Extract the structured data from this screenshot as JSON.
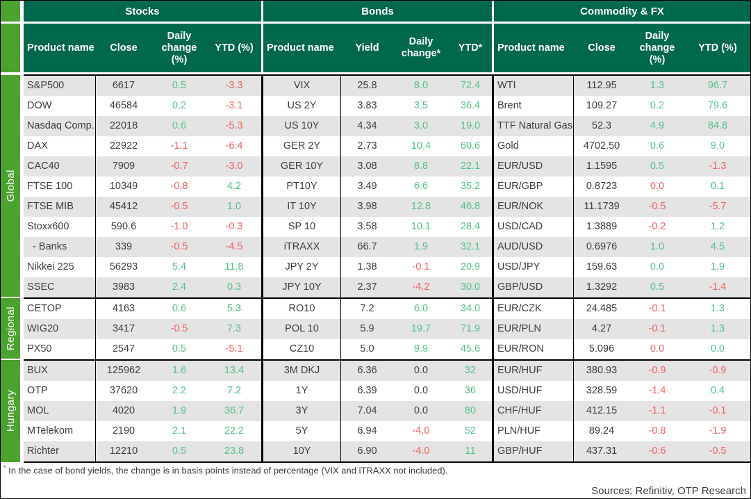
{
  "colors": {
    "header_green": "#00694b",
    "stripe_green": "#4ca22e",
    "row_gray": "#e4e4e4",
    "positive": "#55c189",
    "negative": "#f25f5f",
    "text": "#3e3e3d"
  },
  "header": {
    "groups": [
      {
        "title": "Stocks",
        "columns": [
          "Product name",
          "Close",
          "Daily change (%)",
          "YTD (%)"
        ]
      },
      {
        "title": "Bonds",
        "columns": [
          "Product name",
          "Yield",
          "Daily change*",
          "YTD*"
        ]
      },
      {
        "title": "Commodity & FX",
        "columns": [
          "Product name",
          "Close",
          "Daily change (%)",
          "YTD (%)"
        ]
      }
    ]
  },
  "groups": [
    {
      "label": "Global",
      "rows": [
        {
          "cells": [
            {
              "v": "S&P500"
            },
            {
              "v": "6617"
            },
            {
              "v": "0.5",
              "c": "pos"
            },
            {
              "v": "-3.3",
              "c": "neg"
            },
            {
              "v": "VIX"
            },
            {
              "v": "25.8"
            },
            {
              "v": "8.0",
              "c": "pos"
            },
            {
              "v": "72.4",
              "c": "pos"
            },
            {
              "v": "WTI"
            },
            {
              "v": "112.95"
            },
            {
              "v": "1.3",
              "c": "pos"
            },
            {
              "v": "96.7",
              "c": "pos"
            }
          ]
        },
        {
          "cells": [
            {
              "v": "DOW"
            },
            {
              "v": "46584"
            },
            {
              "v": "0.2",
              "c": "pos"
            },
            {
              "v": "-3.1",
              "c": "neg"
            },
            {
              "v": "US 2Y"
            },
            {
              "v": "3.83"
            },
            {
              "v": "3.5",
              "c": "pos"
            },
            {
              "v": "36.4",
              "c": "pos"
            },
            {
              "v": "Brent"
            },
            {
              "v": "109.27"
            },
            {
              "v": "0.2",
              "c": "pos"
            },
            {
              "v": "79.6",
              "c": "pos"
            }
          ]
        },
        {
          "cells": [
            {
              "v": "Nasdaq Comp."
            },
            {
              "v": "22018"
            },
            {
              "v": "0.6",
              "c": "pos"
            },
            {
              "v": "-5.3",
              "c": "neg"
            },
            {
              "v": "US 10Y"
            },
            {
              "v": "4.34"
            },
            {
              "v": "3.0",
              "c": "pos"
            },
            {
              "v": "19.0",
              "c": "pos"
            },
            {
              "v": "TTF Natural Gas"
            },
            {
              "v": "52.3"
            },
            {
              "v": "4.9",
              "c": "pos"
            },
            {
              "v": "84.8",
              "c": "pos"
            }
          ]
        },
        {
          "cells": [
            {
              "v": "DAX"
            },
            {
              "v": "22922"
            },
            {
              "v": "-1.1",
              "c": "neg"
            },
            {
              "v": "-6.4",
              "c": "neg"
            },
            {
              "v": "GER 2Y"
            },
            {
              "v": "2.73"
            },
            {
              "v": "10.4",
              "c": "pos"
            },
            {
              "v": "60.6",
              "c": "pos"
            },
            {
              "v": "Gold"
            },
            {
              "v": "4702.50"
            },
            {
              "v": "0.6",
              "c": "pos"
            },
            {
              "v": "9.0",
              "c": "pos"
            }
          ]
        },
        {
          "cells": [
            {
              "v": "CAC40"
            },
            {
              "v": "7909"
            },
            {
              "v": "-0.7",
              "c": "neg"
            },
            {
              "v": "-3.0",
              "c": "neg"
            },
            {
              "v": "GER 10Y"
            },
            {
              "v": "3.08"
            },
            {
              "v": "8.8",
              "c": "pos"
            },
            {
              "v": "22.1",
              "c": "pos"
            },
            {
              "v": "EUR/USD"
            },
            {
              "v": "1.1595"
            },
            {
              "v": "0.5",
              "c": "pos"
            },
            {
              "v": "-1.3",
              "c": "neg"
            }
          ]
        },
        {
          "cells": [
            {
              "v": "FTSE 100"
            },
            {
              "v": "10349"
            },
            {
              "v": "-0.8",
              "c": "neg"
            },
            {
              "v": "4.2",
              "c": "pos"
            },
            {
              "v": "PT10Y"
            },
            {
              "v": "3.49"
            },
            {
              "v": "6.6",
              "c": "pos"
            },
            {
              "v": "35.2",
              "c": "pos"
            },
            {
              "v": "EUR/GBP"
            },
            {
              "v": "0.8723"
            },
            {
              "v": "0.0",
              "c": "neg"
            },
            {
              "v": "0.1",
              "c": "pos"
            }
          ]
        },
        {
          "cells": [
            {
              "v": "FTSE MIB"
            },
            {
              "v": "45412"
            },
            {
              "v": "-0.5",
              "c": "neg"
            },
            {
              "v": "1.0",
              "c": "pos"
            },
            {
              "v": "IT 10Y"
            },
            {
              "v": "3.98"
            },
            {
              "v": "12.8",
              "c": "pos"
            },
            {
              "v": "46.8",
              "c": "pos"
            },
            {
              "v": "EUR/NOK"
            },
            {
              "v": "11.1739"
            },
            {
              "v": "-0.5",
              "c": "neg"
            },
            {
              "v": "-5.7",
              "c": "neg"
            }
          ]
        },
        {
          "cells": [
            {
              "v": "Stoxx600"
            },
            {
              "v": "590.6"
            },
            {
              "v": "-1.0",
              "c": "neg"
            },
            {
              "v": "-0.3",
              "c": "neg"
            },
            {
              "v": "SP 10"
            },
            {
              "v": "3.58"
            },
            {
              "v": "10.1",
              "c": "pos"
            },
            {
              "v": "28.4",
              "c": "pos"
            },
            {
              "v": "USD/CAD"
            },
            {
              "v": "1.3889"
            },
            {
              "v": "-0.2",
              "c": "neg"
            },
            {
              "v": "1.2",
              "c": "pos"
            }
          ]
        },
        {
          "cells": [
            {
              "v": "  - Banks"
            },
            {
              "v": "339"
            },
            {
              "v": "-0.5",
              "c": "neg"
            },
            {
              "v": "-4.5",
              "c": "neg"
            },
            {
              "v": "iTRAXX"
            },
            {
              "v": "66.7"
            },
            {
              "v": "1.9",
              "c": "pos"
            },
            {
              "v": "32.1",
              "c": "pos"
            },
            {
              "v": "AUD/USD"
            },
            {
              "v": "0.6976"
            },
            {
              "v": "1.0",
              "c": "pos"
            },
            {
              "v": "4.5",
              "c": "pos"
            }
          ]
        },
        {
          "cells": [
            {
              "v": "Nikkei 225"
            },
            {
              "v": "56293"
            },
            {
              "v": "5.4",
              "c": "pos"
            },
            {
              "v": "11.8",
              "c": "pos"
            },
            {
              "v": "JPY 2Y"
            },
            {
              "v": "1.38"
            },
            {
              "v": "-0.1",
              "c": "neg"
            },
            {
              "v": "20.9",
              "c": "pos"
            },
            {
              "v": "USD/JPY"
            },
            {
              "v": "159.63"
            },
            {
              "v": "0.0",
              "c": "pos"
            },
            {
              "v": "1.9",
              "c": "pos"
            }
          ]
        },
        {
          "cells": [
            {
              "v": "SSEC"
            },
            {
              "v": "3983"
            },
            {
              "v": "2.4",
              "c": "pos"
            },
            {
              "v": "0.3",
              "c": "pos"
            },
            {
              "v": "JPY 10Y"
            },
            {
              "v": "2.37"
            },
            {
              "v": "-4.2",
              "c": "neg"
            },
            {
              "v": "30.0",
              "c": "pos"
            },
            {
              "v": "GBP/USD"
            },
            {
              "v": "1.3292"
            },
            {
              "v": "0.5",
              "c": "pos"
            },
            {
              "v": "-1.4",
              "c": "neg"
            }
          ]
        }
      ]
    },
    {
      "label": "Regional",
      "rows": [
        {
          "cells": [
            {
              "v": "CETOP"
            },
            {
              "v": "4163"
            },
            {
              "v": "0.6",
              "c": "pos"
            },
            {
              "v": "5.3",
              "c": "pos"
            },
            {
              "v": "RO10"
            },
            {
              "v": "7.2"
            },
            {
              "v": "6.0",
              "c": "pos"
            },
            {
              "v": "34.0",
              "c": "pos"
            },
            {
              "v": "EUR/CZK"
            },
            {
              "v": "24.485"
            },
            {
              "v": "-0.1",
              "c": "neg"
            },
            {
              "v": "1.3",
              "c": "pos"
            }
          ]
        },
        {
          "cells": [
            {
              "v": "WIG20"
            },
            {
              "v": "3417"
            },
            {
              "v": "-0.5",
              "c": "neg"
            },
            {
              "v": "7.3",
              "c": "pos"
            },
            {
              "v": "POL 10"
            },
            {
              "v": "5.9"
            },
            {
              "v": "19.7",
              "c": "pos"
            },
            {
              "v": "71.9",
              "c": "pos"
            },
            {
              "v": "EUR/PLN"
            },
            {
              "v": "4.27"
            },
            {
              "v": "-0.1",
              "c": "neg"
            },
            {
              "v": "1.3",
              "c": "pos"
            }
          ]
        },
        {
          "cells": [
            {
              "v": "PX50"
            },
            {
              "v": "2547"
            },
            {
              "v": "0.5",
              "c": "pos"
            },
            {
              "v": "-5.1",
              "c": "neg"
            },
            {
              "v": "CZ10"
            },
            {
              "v": "5.0"
            },
            {
              "v": "9.9",
              "c": "pos"
            },
            {
              "v": "45.6",
              "c": "pos"
            },
            {
              "v": "EUR/RON"
            },
            {
              "v": "5.096"
            },
            {
              "v": "0.0",
              "c": "neg"
            },
            {
              "v": "0.0",
              "c": "pos"
            }
          ]
        }
      ]
    },
    {
      "label": "Hungary",
      "rows": [
        {
          "cells": [
            {
              "v": "BUX"
            },
            {
              "v": "125962"
            },
            {
              "v": "1.6",
              "c": "pos"
            },
            {
              "v": "13.4",
              "c": "pos"
            },
            {
              "v": "3M DKJ"
            },
            {
              "v": "6.36"
            },
            {
              "v": "0.0",
              "c": "zero"
            },
            {
              "v": "32",
              "c": "pos"
            },
            {
              "v": "EUR/HUF"
            },
            {
              "v": "380.93"
            },
            {
              "v": "-0.9",
              "c": "neg"
            },
            {
              "v": "-0.9",
              "c": "neg"
            }
          ]
        },
        {
          "cells": [
            {
              "v": "OTP"
            },
            {
              "v": "37620"
            },
            {
              "v": "2.2",
              "c": "pos"
            },
            {
              "v": "7.2",
              "c": "pos"
            },
            {
              "v": "1Y"
            },
            {
              "v": "6.39"
            },
            {
              "v": "0.0",
              "c": "zero"
            },
            {
              "v": "36",
              "c": "pos"
            },
            {
              "v": "USD/HUF"
            },
            {
              "v": "328.59"
            },
            {
              "v": "-1.4",
              "c": "neg"
            },
            {
              "v": "0.4",
              "c": "pos"
            }
          ]
        },
        {
          "cells": [
            {
              "v": "MOL"
            },
            {
              "v": "4020"
            },
            {
              "v": "1.9",
              "c": "pos"
            },
            {
              "v": "36.7",
              "c": "pos"
            },
            {
              "v": "3Y"
            },
            {
              "v": "7.04"
            },
            {
              "v": "0.0",
              "c": "zero"
            },
            {
              "v": "80",
              "c": "pos"
            },
            {
              "v": "CHF/HUF"
            },
            {
              "v": "412.15"
            },
            {
              "v": "-1.1",
              "c": "neg"
            },
            {
              "v": "-0.1",
              "c": "neg"
            }
          ]
        },
        {
          "cells": [
            {
              "v": "MTelekom"
            },
            {
              "v": "2190"
            },
            {
              "v": "2.1",
              "c": "pos"
            },
            {
              "v": "22.2",
              "c": "pos"
            },
            {
              "v": "5Y"
            },
            {
              "v": "6.94"
            },
            {
              "v": "-4.0",
              "c": "neg"
            },
            {
              "v": "52",
              "c": "pos"
            },
            {
              "v": "PLN/HUF"
            },
            {
              "v": "89.24"
            },
            {
              "v": "-0.8",
              "c": "neg"
            },
            {
              "v": "-1.9",
              "c": "neg"
            }
          ]
        },
        {
          "cells": [
            {
              "v": "Richter"
            },
            {
              "v": "12210"
            },
            {
              "v": "0.5",
              "c": "pos"
            },
            {
              "v": "23.8",
              "c": "pos"
            },
            {
              "v": "10Y"
            },
            {
              "v": "6.90"
            },
            {
              "v": "-4.0",
              "c": "neg"
            },
            {
              "v": "11",
              "c": "pos"
            },
            {
              "v": "GBP/HUF"
            },
            {
              "v": "437.31"
            },
            {
              "v": "-0.6",
              "c": "neg"
            },
            {
              "v": "-0.5",
              "c": "neg"
            }
          ]
        }
      ]
    }
  ],
  "footer": {
    "footnote_marker": "*",
    "footnote": "In the case of bond yields, the change is in basis points instead of percentage (VIX and iTRAXX not included).",
    "sources": "Sources: Refinitiv, OTP Research"
  }
}
